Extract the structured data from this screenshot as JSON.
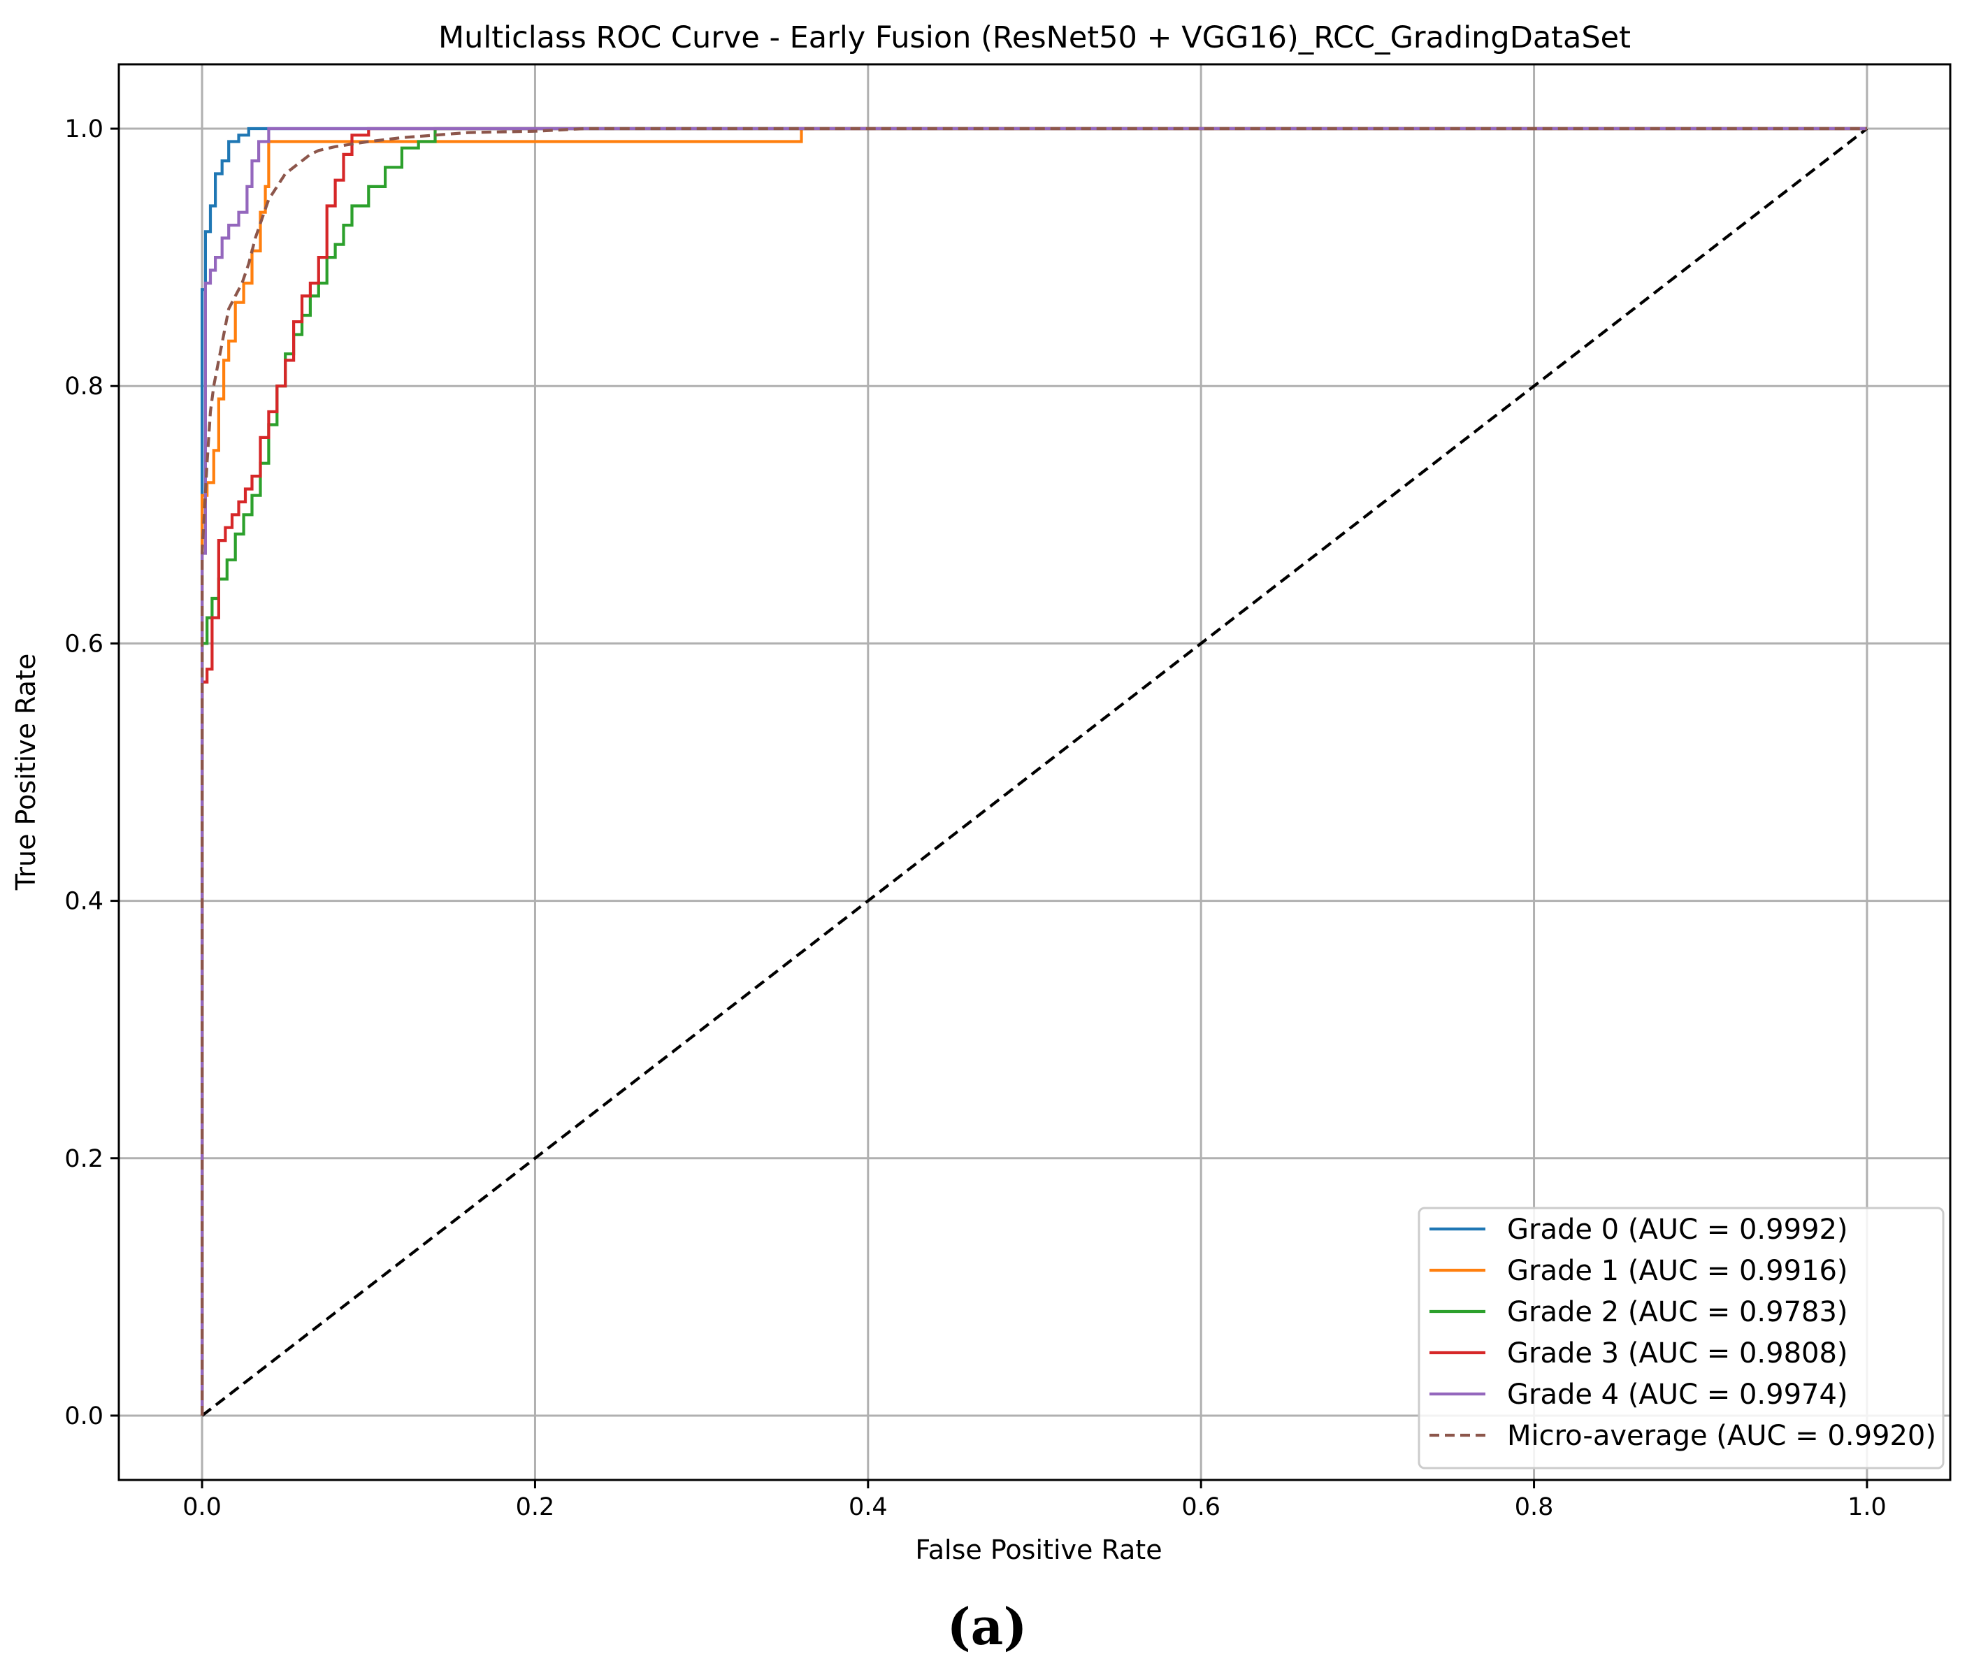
{
  "chart_data": {
    "type": "line",
    "title": "Multiclass ROC Curve - Early Fusion (ResNet50 + VGG16)_RCC_GradingDataSet",
    "xlabel": "False Positive Rate",
    "ylabel": "True Positive Rate",
    "xlim": [
      -0.05,
      1.05
    ],
    "ylim": [
      -0.05,
      1.05
    ],
    "xticks": [
      "0.0",
      "0.2",
      "0.4",
      "0.6",
      "0.8",
      "1.0"
    ],
    "yticks": [
      "0.0",
      "0.2",
      "0.4",
      "0.6",
      "0.8",
      "1.0"
    ],
    "grid": true,
    "legend_position": "lower right",
    "caption": "(a)",
    "series": [
      {
        "name": "Grade 0 (AUC = 0.9992)",
        "color": "#1f77b4",
        "style": "solid",
        "x": [
          0,
          0,
          0.002,
          0.002,
          0.005,
          0.005,
          0.008,
          0.008,
          0.012,
          0.012,
          0.016,
          0.016,
          0.022,
          0.022,
          0.028,
          0.028,
          0.036,
          0.036,
          0.05,
          0.05,
          1.0
        ],
        "y": [
          0,
          0.875,
          0.875,
          0.92,
          0.92,
          0.94,
          0.94,
          0.965,
          0.965,
          0.975,
          0.975,
          0.99,
          0.99,
          0.995,
          0.995,
          1.0,
          1.0,
          1.0,
          1.0,
          1.0,
          1.0
        ]
      },
      {
        "name": "Grade 1 (AUC = 0.9916)",
        "color": "#ff7f0e",
        "style": "solid",
        "x": [
          0,
          0,
          0.003,
          0.003,
          0.007,
          0.007,
          0.01,
          0.01,
          0.013,
          0.013,
          0.016,
          0.016,
          0.02,
          0.02,
          0.025,
          0.025,
          0.03,
          0.03,
          0.035,
          0.035,
          0.038,
          0.038,
          0.04,
          0.04,
          0.36,
          0.36,
          1.0
        ],
        "y": [
          0,
          0.715,
          0.715,
          0.725,
          0.725,
          0.75,
          0.75,
          0.79,
          0.79,
          0.82,
          0.82,
          0.835,
          0.835,
          0.865,
          0.865,
          0.88,
          0.88,
          0.905,
          0.905,
          0.935,
          0.935,
          0.955,
          0.955,
          0.99,
          0.99,
          1.0,
          1.0
        ]
      },
      {
        "name": "Grade 2 (AUC = 0.9783)",
        "color": "#2ca02c",
        "style": "solid",
        "x": [
          0,
          0,
          0.003,
          0.003,
          0.006,
          0.006,
          0.01,
          0.01,
          0.015,
          0.015,
          0.02,
          0.02,
          0.025,
          0.025,
          0.03,
          0.03,
          0.035,
          0.035,
          0.04,
          0.04,
          0.045,
          0.045,
          0.05,
          0.05,
          0.055,
          0.055,
          0.06,
          0.06,
          0.065,
          0.065,
          0.07,
          0.07,
          0.075,
          0.075,
          0.08,
          0.08,
          0.085,
          0.085,
          0.09,
          0.09,
          0.1,
          0.1,
          0.11,
          0.11,
          0.12,
          0.12,
          0.13,
          0.13,
          0.14,
          0.14,
          0.2,
          1.0
        ],
        "y": [
          0,
          0.6,
          0.6,
          0.62,
          0.62,
          0.635,
          0.635,
          0.65,
          0.65,
          0.665,
          0.665,
          0.685,
          0.685,
          0.7,
          0.7,
          0.715,
          0.715,
          0.74,
          0.74,
          0.77,
          0.77,
          0.8,
          0.8,
          0.825,
          0.825,
          0.84,
          0.84,
          0.855,
          0.855,
          0.87,
          0.87,
          0.88,
          0.88,
          0.9,
          0.9,
          0.91,
          0.91,
          0.925,
          0.925,
          0.94,
          0.94,
          0.955,
          0.955,
          0.97,
          0.97,
          0.985,
          0.985,
          0.99,
          0.99,
          1.0,
          1.0,
          1.0
        ]
      },
      {
        "name": "Grade 3 (AUC = 0.9808)",
        "color": "#d62728",
        "style": "solid",
        "x": [
          0,
          0,
          0.003,
          0.003,
          0.006,
          0.006,
          0.01,
          0.01,
          0.014,
          0.014,
          0.018,
          0.018,
          0.022,
          0.022,
          0.026,
          0.026,
          0.03,
          0.03,
          0.035,
          0.035,
          0.04,
          0.04,
          0.045,
          0.045,
          0.05,
          0.05,
          0.055,
          0.055,
          0.06,
          0.06,
          0.065,
          0.065,
          0.07,
          0.07,
          0.075,
          0.075,
          0.08,
          0.08,
          0.085,
          0.085,
          0.09,
          0.09,
          0.1,
          0.1,
          1.0
        ],
        "y": [
          0,
          0.57,
          0.57,
          0.58,
          0.58,
          0.62,
          0.62,
          0.68,
          0.68,
          0.69,
          0.69,
          0.7,
          0.7,
          0.71,
          0.71,
          0.72,
          0.72,
          0.73,
          0.73,
          0.76,
          0.76,
          0.78,
          0.78,
          0.8,
          0.8,
          0.82,
          0.82,
          0.85,
          0.85,
          0.87,
          0.87,
          0.88,
          0.88,
          0.9,
          0.9,
          0.94,
          0.94,
          0.96,
          0.96,
          0.98,
          0.98,
          0.995,
          0.995,
          1.0,
          1.0
        ]
      },
      {
        "name": "Grade 4 (AUC = 0.9974)",
        "color": "#9467bd",
        "style": "solid",
        "x": [
          0,
          0,
          0.002,
          0.002,
          0.005,
          0.005,
          0.008,
          0.008,
          0.012,
          0.012,
          0.016,
          0.016,
          0.022,
          0.022,
          0.027,
          0.027,
          0.03,
          0.03,
          0.034,
          0.034,
          0.04,
          0.04,
          1.0
        ],
        "y": [
          0,
          0.67,
          0.67,
          0.88,
          0.88,
          0.89,
          0.89,
          0.9,
          0.9,
          0.915,
          0.915,
          0.925,
          0.925,
          0.935,
          0.935,
          0.955,
          0.955,
          0.975,
          0.975,
          0.99,
          0.99,
          1.0,
          1.0
        ]
      },
      {
        "name": "Micro-average (AUC = 0.9920)",
        "color": "#8c564b",
        "style": "dashed",
        "x": [
          0,
          0,
          0.003,
          0.005,
          0.007,
          0.01,
          0.013,
          0.016,
          0.02,
          0.024,
          0.028,
          0.032,
          0.036,
          0.04,
          0.045,
          0.05,
          0.055,
          0.06,
          0.065,
          0.07,
          0.08,
          0.09,
          0.1,
          0.12,
          0.14,
          0.16,
          0.2,
          0.23,
          1.0
        ],
        "y": [
          0,
          0.67,
          0.74,
          0.78,
          0.8,
          0.82,
          0.84,
          0.86,
          0.87,
          0.88,
          0.895,
          0.915,
          0.93,
          0.945,
          0.955,
          0.965,
          0.97,
          0.975,
          0.98,
          0.983,
          0.986,
          0.988,
          0.99,
          0.993,
          0.995,
          0.997,
          0.998,
          1.0,
          1.0
        ]
      },
      {
        "name": "",
        "color": "#000000",
        "style": "dashed",
        "x": [
          0,
          1
        ],
        "y": [
          0,
          1
        ]
      }
    ]
  }
}
